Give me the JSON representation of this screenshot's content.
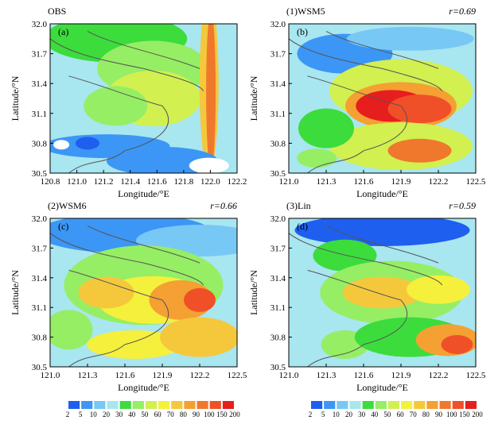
{
  "chart_data": [
    {
      "type": "contour",
      "title": "OBS",
      "panel_label": "(a)",
      "x_label": "Longitude/°E",
      "y_label": "Latitude/°N",
      "xlim": [
        120.8,
        122.2
      ],
      "xticks": [
        120.8,
        {
          "value": 121,
          "label": "121.0"
        },
        121.2,
        121.4,
        121.6,
        121.8,
        {
          "value": 122,
          "label": "122.0"
        },
        122.2
      ],
      "ylim": [
        30.5,
        32
      ],
      "yticks": [
        30.5,
        30.8,
        31.1,
        31.4,
        31.7,
        {
          "value": 32,
          "label": "32.0"
        }
      ]
    },
    {
      "type": "contour",
      "title": "(1)WSM5",
      "panel_label": "(b)",
      "annotation": "r=0.69",
      "x_label": "Longitude/°E",
      "y_label": "Latitude/°N",
      "xlim": [
        121,
        122.5
      ],
      "xticks": [
        {
          "value": 121,
          "label": "121.0"
        },
        121.3,
        121.6,
        121.9,
        122.2,
        122.5
      ],
      "ylim": [
        30.5,
        32
      ],
      "yticks": [
        30.5,
        30.8,
        31.1,
        31.4,
        31.7,
        {
          "value": 32,
          "label": "32.0"
        }
      ]
    },
    {
      "type": "contour",
      "title": "(2)WSM6",
      "panel_label": "(c)",
      "annotation": "r=0.66",
      "x_label": "Longitude/°E",
      "y_label": "Latitude/°N",
      "xlim": [
        121,
        122.5
      ],
      "xticks": [
        {
          "value": 121,
          "label": "121.0"
        },
        121.3,
        121.6,
        121.9,
        122.2,
        122.5
      ],
      "ylim": [
        30.5,
        32
      ],
      "yticks": [
        30.5,
        30.8,
        31.1,
        31.4,
        31.7,
        {
          "value": 32,
          "label": "32.0"
        }
      ]
    },
    {
      "type": "contour",
      "title": "(3)Lin",
      "panel_label": "(d)",
      "annotation": "r=0.59",
      "x_label": "Longitude/°E",
      "y_label": "Latitude/°N",
      "xlim": [
        121,
        122.5
      ],
      "xticks": [
        {
          "value": 121,
          "label": "121.0"
        },
        121.3,
        121.6,
        121.9,
        122.2,
        122.5
      ],
      "ylim": [
        30.5,
        32
      ],
      "yticks": [
        30.5,
        30.8,
        31.1,
        31.4,
        31.7,
        {
          "value": 32,
          "label": "32.0"
        }
      ]
    }
  ],
  "colorbar": {
    "levels": [
      2,
      5,
      10,
      20,
      30,
      40,
      50,
      60,
      70,
      80,
      90,
      100,
      150,
      200
    ],
    "colors": [
      "#1e5ff0",
      "#3c96f5",
      "#78c8f5",
      "#a8e6f0",
      "#3cdc3c",
      "#96ee64",
      "#d2f050",
      "#f5f03c",
      "#f5c83c",
      "#f5a032",
      "#f0782d",
      "#f05028",
      "#e61e1e"
    ]
  }
}
